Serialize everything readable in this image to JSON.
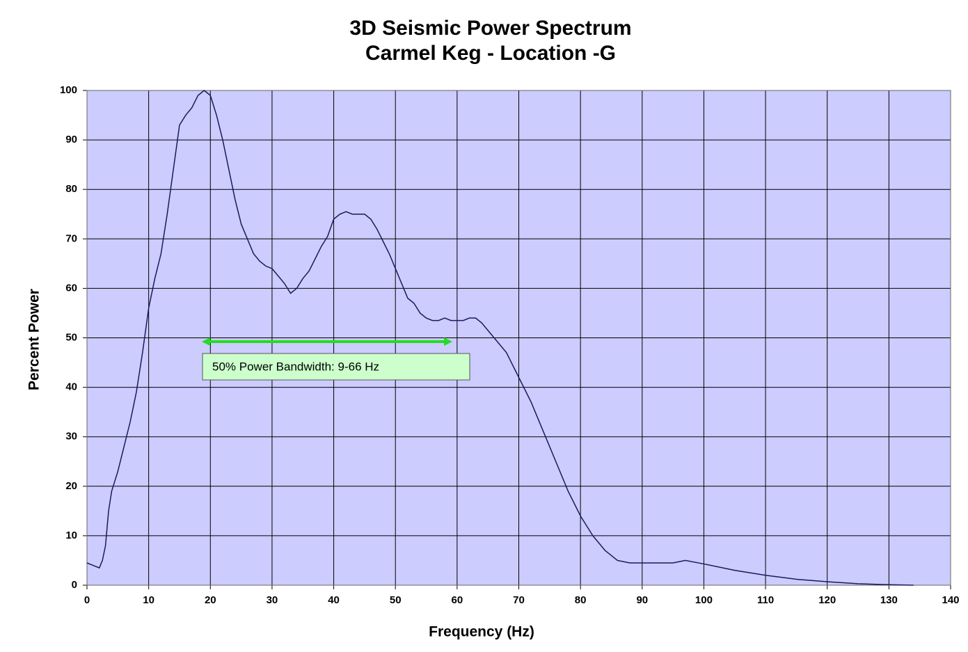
{
  "chart_data": {
    "type": "line",
    "title": "3D Seismic Power Spectrum",
    "subtitle": "Carmel Keg - Location -G",
    "x_label": "Frequency (Hz)",
    "y_label": "Percent Power",
    "annotation": "50% Power Bandwidth: 9-66 Hz",
    "x": [
      0,
      1,
      2,
      2.5,
      3,
      3.5,
      4,
      5,
      6,
      7,
      8,
      9,
      10,
      11,
      12,
      13,
      14,
      15,
      16,
      17,
      18,
      19,
      20,
      21,
      22,
      23,
      24,
      25,
      26,
      27,
      28,
      29,
      30,
      31,
      32,
      33,
      34,
      35,
      36,
      37,
      38,
      39,
      40,
      41,
      42,
      43,
      44,
      45,
      46,
      47,
      48,
      49,
      50,
      51,
      52,
      53,
      54,
      55,
      56,
      57,
      58,
      59,
      60,
      61,
      62,
      63,
      64,
      65,
      66,
      67,
      68,
      69,
      70,
      72,
      74,
      76,
      78,
      80,
      82,
      84,
      86,
      88,
      90,
      95,
      97,
      100,
      105,
      110,
      115,
      120,
      125,
      130,
      134
    ],
    "series": [
      {
        "name": "Power",
        "color": "#1a1a5e",
        "values": [
          4.5,
          4,
          3.5,
          5,
          8,
          15,
          19,
          23,
          28,
          33,
          39,
          47,
          56,
          62,
          67,
          75,
          84,
          93,
          95,
          96.5,
          99,
          100,
          99,
          95,
          90,
          84,
          78,
          73,
          70,
          67,
          65.5,
          64.5,
          64,
          62.5,
          61,
          59,
          60,
          62,
          63.5,
          66,
          68.5,
          70.5,
          74,
          75,
          75.5,
          75,
          75,
          75,
          74,
          72,
          69.5,
          67,
          64,
          61,
          58,
          57,
          55,
          54,
          53.5,
          53.5,
          54,
          53.5,
          53.5,
          53.5,
          54,
          54,
          53,
          51.5,
          50,
          48.5,
          47,
          44.5,
          42,
          37,
          31,
          25,
          19,
          14,
          10,
          7,
          5,
          4.5,
          4.5,
          4.5,
          5,
          4.3,
          3,
          2,
          1.2,
          0.7,
          0.3,
          0.1,
          0
        ]
      }
    ],
    "xlim": [
      0,
      140
    ],
    "ylim": [
      0,
      100
    ],
    "xticks": [
      0,
      10,
      20,
      30,
      40,
      50,
      60,
      70,
      80,
      90,
      100,
      110,
      120,
      130,
      140
    ],
    "yticks": [
      0,
      10,
      20,
      30,
      40,
      50,
      60,
      70,
      80,
      90,
      100
    ],
    "grid": true,
    "plot_background": "#ccccff"
  }
}
